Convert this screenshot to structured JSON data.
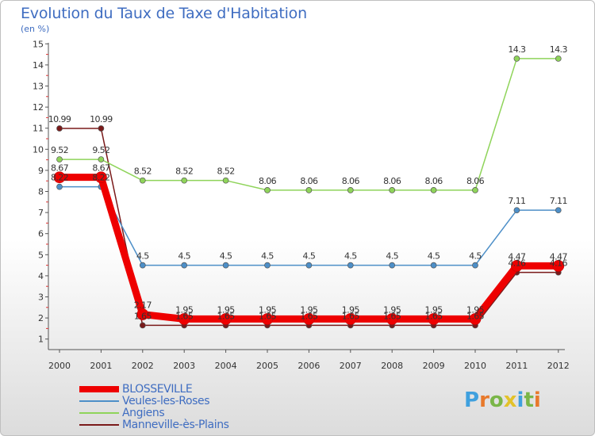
{
  "title": "Evolution du Taux de Taxe d'Habitation",
  "unit": "(en %)",
  "logo": {
    "letters": [
      "P",
      "r",
      "o",
      "x",
      "i",
      "t",
      "i"
    ],
    "colors": [
      "#3fa0de",
      "#e8792b",
      "#7ab648",
      "#e3c22a",
      "#3fa0de",
      "#7ab648",
      "#e8792b"
    ]
  },
  "chart_data": {
    "type": "line",
    "x": [
      "2000",
      "2001",
      "2002",
      "2003",
      "2004",
      "2005",
      "2006",
      "2007",
      "2008",
      "2009",
      "2010",
      "2011",
      "2012"
    ],
    "y_ticks": [
      "1",
      "2",
      "3",
      "4",
      "5",
      "6",
      "7",
      "8",
      "9",
      "10",
      "11",
      "12",
      "13",
      "14",
      "15"
    ],
    "ylim": [
      0.5,
      15
    ],
    "grid": false,
    "legend_position": "bottom-left",
    "series": [
      {
        "name": "BLOSSEVILLE",
        "color": "#ee0000",
        "width": 9,
        "values": [
          8.67,
          8.67,
          2.17,
          1.95,
          1.95,
          1.95,
          1.95,
          1.95,
          1.95,
          1.95,
          1.95,
          4.47,
          4.47
        ],
        "labels": [
          "8.67",
          "8.67",
          "2.17",
          "1.95",
          "1.95",
          "1.95",
          "1.95",
          "1.95",
          "1.95",
          "1.95",
          "1.95",
          "4.47",
          "4.47"
        ]
      },
      {
        "name": "Veules-les-Roses",
        "color": "#4d8fc8",
        "width": 1.5,
        "values": [
          8.22,
          8.22,
          4.5,
          4.5,
          4.5,
          4.5,
          4.5,
          4.5,
          4.5,
          4.5,
          4.5,
          7.11,
          7.11
        ],
        "labels": [
          "8.22",
          "8.22",
          "4.5",
          "4.5",
          "4.5",
          "4.5",
          "4.5",
          "4.5",
          "4.5",
          "4.5",
          "4.5",
          "7.11",
          "7.11"
        ]
      },
      {
        "name": "Angiens",
        "color": "#8fd45a",
        "width": 1.5,
        "values": [
          9.52,
          9.52,
          8.52,
          8.52,
          8.52,
          8.06,
          8.06,
          8.06,
          8.06,
          8.06,
          8.06,
          14.3,
          14.3
        ],
        "labels": [
          "9.52",
          "9.52",
          "8.52",
          "8.52",
          "8.52",
          "8.06",
          "8.06",
          "8.06",
          "8.06",
          "8.06",
          "8.06",
          "14.3",
          "14.3"
        ]
      },
      {
        "name": "Manneville-ès-Plains",
        "color": "#7a1a1a",
        "width": 1.5,
        "values": [
          10.99,
          10.99,
          1.65,
          1.65,
          1.65,
          1.65,
          1.65,
          1.65,
          1.65,
          1.65,
          1.65,
          4.16,
          4.16
        ],
        "labels": [
          "10.99",
          "10.99",
          "1.65",
          "1.65",
          "1.65",
          "1.65",
          "1.65",
          "1.65",
          "1.65",
          "1.65",
          "1.65",
          "4.16",
          "4.16"
        ]
      }
    ]
  }
}
